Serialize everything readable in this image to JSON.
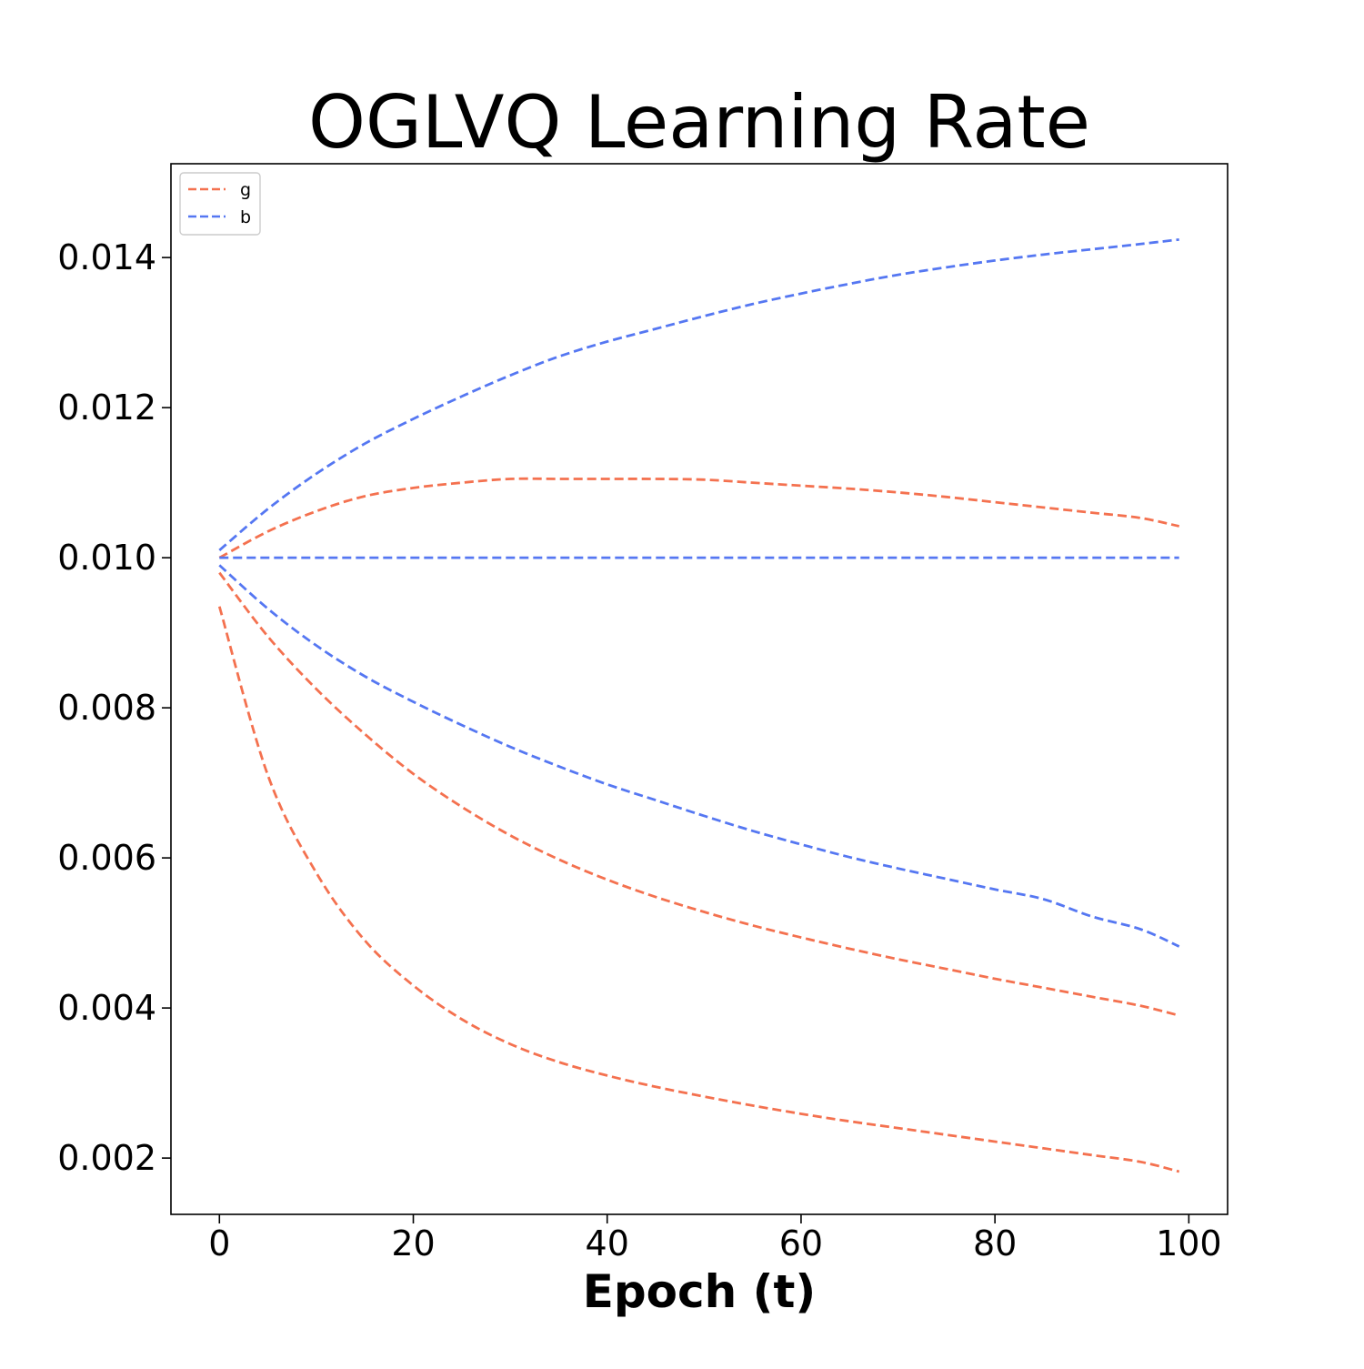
{
  "chart_data": {
    "type": "line",
    "title": "OGLVQ Learning Rate",
    "xlabel": "Epoch (t)",
    "ylabel": "",
    "xlim": [
      -5,
      104
    ],
    "ylim": [
      0.00125,
      0.01525
    ],
    "xticks": [
      0,
      20,
      40,
      60,
      80,
      100
    ],
    "xtick_labels": [
      "0",
      "20",
      "40",
      "60",
      "80",
      "100"
    ],
    "yticks": [
      0.002,
      0.004,
      0.006,
      0.008,
      0.01,
      0.012,
      0.014
    ],
    "ytick_labels": [
      "0.002",
      "0.004",
      "0.006",
      "0.008",
      "0.010",
      "0.012",
      "0.014"
    ],
    "grid": false,
    "legend_position": "top-left",
    "legend": [
      {
        "label": "g",
        "color": "#f4714f",
        "style": "dashed"
      },
      {
        "label": "b",
        "color": "#5577f2",
        "style": "dashed"
      }
    ],
    "x": [
      0,
      5,
      10,
      15,
      20,
      25,
      30,
      35,
      40,
      45,
      50,
      55,
      60,
      65,
      70,
      75,
      80,
      85,
      90,
      95,
      99
    ],
    "series": [
      {
        "group": "b",
        "color": "#5577f2",
        "values": [
          0.0101,
          0.01065,
          0.01112,
          0.01152,
          0.01185,
          0.01215,
          0.01243,
          0.01268,
          0.01288,
          0.01305,
          0.01322,
          0.01338,
          0.01352,
          0.01365,
          0.01377,
          0.01387,
          0.01396,
          0.01404,
          0.01411,
          0.01418,
          0.01424
        ]
      },
      {
        "group": "g",
        "color": "#f4714f",
        "values": [
          0.01,
          0.01035,
          0.01062,
          0.01082,
          0.01093,
          0.011,
          0.01105,
          0.01105,
          0.01105,
          0.01105,
          0.01104,
          0.011,
          0.01096,
          0.01092,
          0.01087,
          0.01081,
          0.01074,
          0.01067,
          0.0106,
          0.01053,
          0.01042
        ]
      },
      {
        "group": "b",
        "color": "#5577f2",
        "values": [
          0.01,
          0.01,
          0.01,
          0.01,
          0.01,
          0.01,
          0.01,
          0.01,
          0.01,
          0.01,
          0.01,
          0.01,
          0.01,
          0.01,
          0.01,
          0.01,
          0.01,
          0.01,
          0.01,
          0.01,
          0.01
        ]
      },
      {
        "group": "b",
        "color": "#5577f2",
        "values": [
          0.0099,
          0.00932,
          0.00883,
          0.00842,
          0.00808,
          0.00777,
          0.00748,
          0.00722,
          0.00698,
          0.00677,
          0.00656,
          0.00636,
          0.00618,
          0.00601,
          0.00586,
          0.00572,
          0.00558,
          0.00545,
          0.00522,
          0.00505,
          0.00482
        ]
      },
      {
        "group": "g",
        "color": "#f4714f",
        "values": [
          0.0098,
          0.00895,
          0.00825,
          0.00765,
          0.00712,
          0.00668,
          0.0063,
          0.00598,
          0.00571,
          0.00548,
          0.00528,
          0.0051,
          0.00494,
          0.00479,
          0.00465,
          0.00452,
          0.00439,
          0.00427,
          0.00415,
          0.00403,
          0.0039
        ]
      },
      {
        "group": "g",
        "color": "#f4714f",
        "values": [
          0.00935,
          0.0071,
          0.0058,
          0.0049,
          0.0043,
          0.00385,
          0.00352,
          0.00328,
          0.0031,
          0.00295,
          0.00282,
          0.0027,
          0.00259,
          0.00249,
          0.0024,
          0.00231,
          0.00222,
          0.00213,
          0.00204,
          0.00195,
          0.00182
        ]
      }
    ]
  }
}
